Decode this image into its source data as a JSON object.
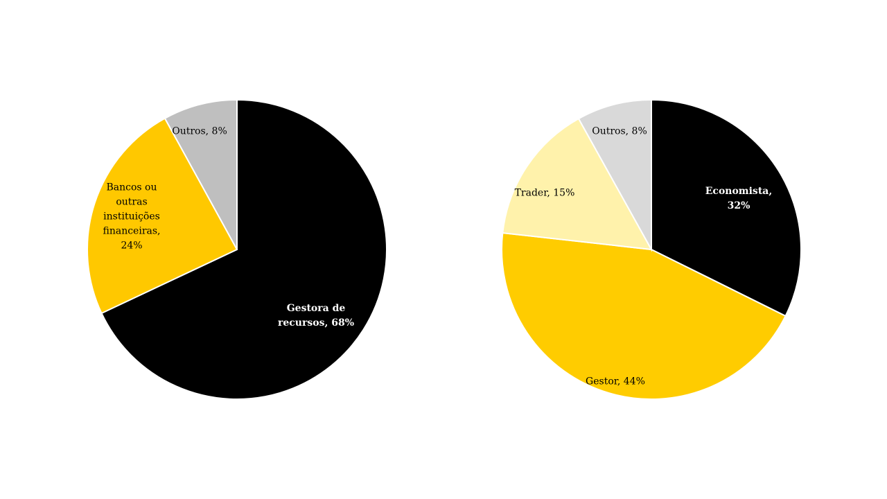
{
  "chart_data": [
    {
      "type": "pie",
      "categories": [
        "Gestora de recursos",
        "Bancos ou outras instituições financeiras",
        "Outros"
      ],
      "values": [
        68,
        24,
        8
      ],
      "value_labels": [
        "Gestora de recursos, 68%",
        "Bancos ou outras instituições financeiras, 24%",
        "Outros, 8%"
      ],
      "colors": [
        "#000000",
        "#ffc800",
        "#bfbfbf"
      ]
    },
    {
      "type": "pie",
      "categories": [
        "Economista",
        "Gestor",
        "Trader",
        "Outros"
      ],
      "values": [
        32,
        44,
        15,
        8
      ],
      "value_labels": [
        "Economista, 32%",
        "Gestor, 44%",
        "Trader, 15%",
        "Outros, 8%"
      ],
      "colors": [
        "#000000",
        "#ffcc00",
        "#fff2ab",
        "#d9d9d9"
      ]
    }
  ]
}
